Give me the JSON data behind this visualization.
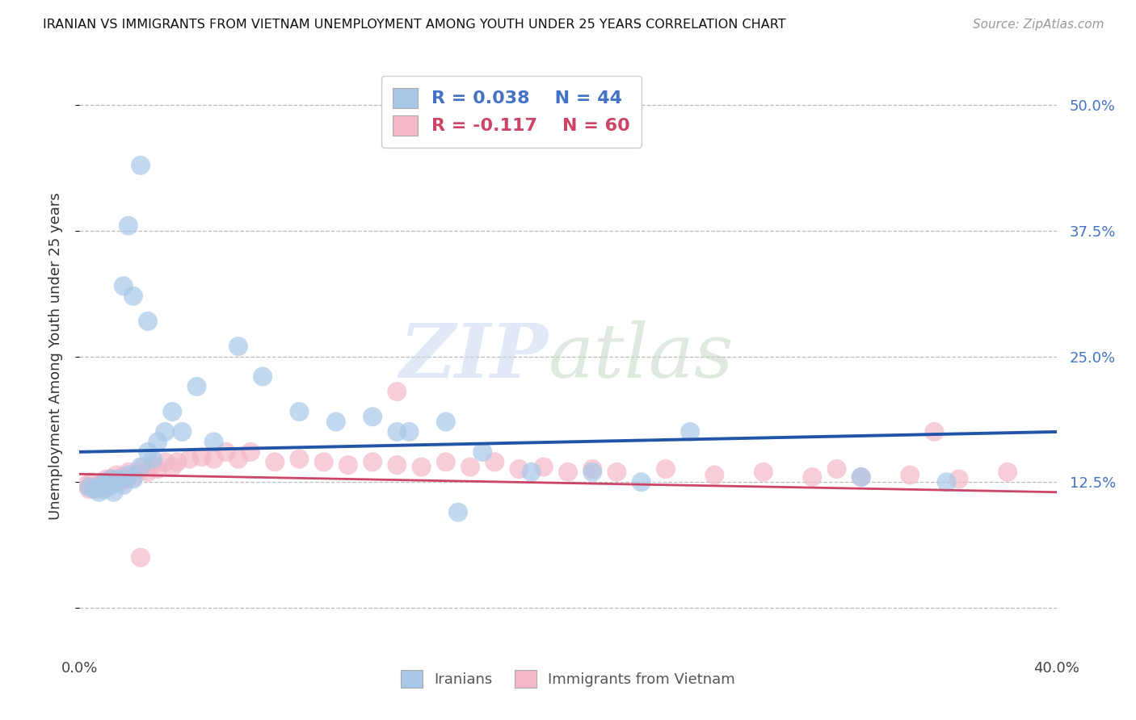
{
  "title": "IRANIAN VS IMMIGRANTS FROM VIETNAM UNEMPLOYMENT AMONG YOUTH UNDER 25 YEARS CORRELATION CHART",
  "source": "Source: ZipAtlas.com",
  "ylabel": "Unemployment Among Youth under 25 years",
  "xmin": 0.0,
  "xmax": 0.4,
  "ymin": -0.04,
  "ymax": 0.54,
  "yticks": [
    0.0,
    0.125,
    0.25,
    0.375,
    0.5
  ],
  "ytick_labels_right": [
    "",
    "12.5%",
    "25.0%",
    "37.5%",
    "50.0%"
  ],
  "legend_label1": "Iranians",
  "legend_label2": "Immigrants from Vietnam",
  "R1": 0.038,
  "N1": 44,
  "R2": -0.117,
  "N2": 60,
  "color1": "#a8c8e8",
  "color2": "#f4b8c8",
  "color1_line": "#2255aa",
  "color2_line": "#cc4466",
  "watermark": "ZIPatlas",
  "iranians_x": [
    0.004,
    0.006,
    0.008,
    0.009,
    0.01,
    0.011,
    0.012,
    0.013,
    0.014,
    0.015,
    0.016,
    0.018,
    0.02,
    0.022,
    0.025,
    0.028,
    0.03,
    0.032,
    0.035,
    0.038,
    0.042,
    0.048,
    0.055,
    0.065,
    0.075,
    0.09,
    0.105,
    0.12,
    0.135,
    0.15,
    0.165,
    0.185,
    0.21,
    0.23,
    0.25,
    0.018,
    0.022,
    0.028,
    0.02,
    0.025,
    0.13,
    0.155,
    0.32,
    0.355
  ],
  "iranians_y": [
    0.12,
    0.118,
    0.115,
    0.122,
    0.118,
    0.125,
    0.12,
    0.128,
    0.115,
    0.125,
    0.128,
    0.122,
    0.132,
    0.128,
    0.14,
    0.155,
    0.148,
    0.165,
    0.175,
    0.195,
    0.175,
    0.22,
    0.165,
    0.26,
    0.23,
    0.195,
    0.185,
    0.19,
    0.175,
    0.185,
    0.155,
    0.135,
    0.135,
    0.125,
    0.175,
    0.32,
    0.31,
    0.285,
    0.38,
    0.44,
    0.175,
    0.095,
    0.13,
    0.125
  ],
  "vietnam_x": [
    0.003,
    0.004,
    0.005,
    0.006,
    0.007,
    0.008,
    0.009,
    0.01,
    0.011,
    0.012,
    0.013,
    0.014,
    0.015,
    0.016,
    0.017,
    0.018,
    0.019,
    0.02,
    0.022,
    0.024,
    0.026,
    0.028,
    0.03,
    0.032,
    0.035,
    0.038,
    0.04,
    0.045,
    0.05,
    0.055,
    0.06,
    0.065,
    0.07,
    0.08,
    0.09,
    0.1,
    0.11,
    0.12,
    0.13,
    0.14,
    0.15,
    0.16,
    0.17,
    0.18,
    0.19,
    0.2,
    0.21,
    0.22,
    0.24,
    0.26,
    0.28,
    0.3,
    0.31,
    0.32,
    0.34,
    0.36,
    0.38,
    0.025,
    0.13,
    0.35
  ],
  "vietnam_y": [
    0.122,
    0.118,
    0.125,
    0.12,
    0.118,
    0.122,
    0.125,
    0.12,
    0.128,
    0.122,
    0.128,
    0.125,
    0.132,
    0.128,
    0.125,
    0.13,
    0.128,
    0.135,
    0.13,
    0.135,
    0.14,
    0.135,
    0.142,
    0.138,
    0.145,
    0.14,
    0.145,
    0.148,
    0.15,
    0.148,
    0.155,
    0.148,
    0.155,
    0.145,
    0.148,
    0.145,
    0.142,
    0.145,
    0.142,
    0.14,
    0.145,
    0.14,
    0.145,
    0.138,
    0.14,
    0.135,
    0.138,
    0.135,
    0.138,
    0.132,
    0.135,
    0.13,
    0.138,
    0.13,
    0.132,
    0.128,
    0.135,
    0.05,
    0.215,
    0.175
  ]
}
